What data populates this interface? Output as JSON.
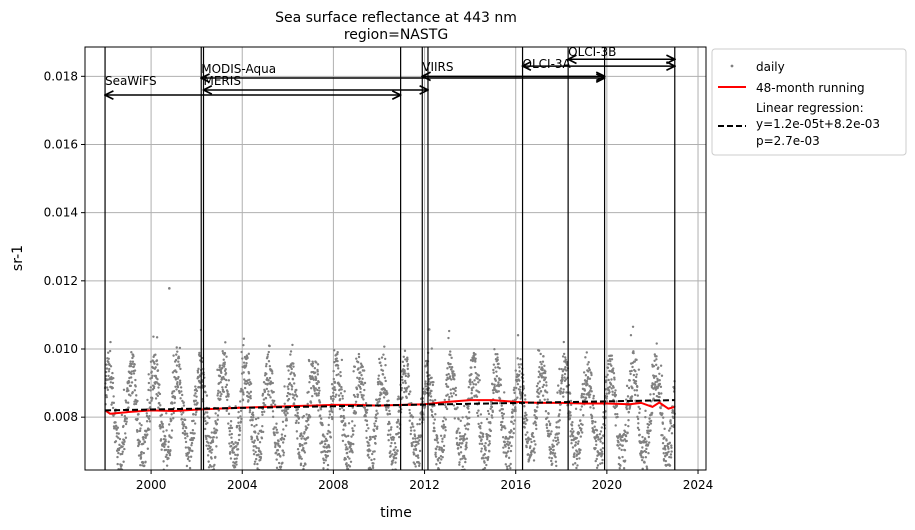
{
  "chart_data": {
    "type": "scatter",
    "title": "Sea surface reflectance at 443 nm",
    "subtitle": "region=NASTG",
    "xlabel": "time",
    "ylabel": "sr-1",
    "xlim": [
      1997.1,
      2024.35
    ],
    "ylim": [
      0.00645,
      0.01886
    ],
    "xticks": [
      2000,
      2004,
      2008,
      2012,
      2016,
      2020,
      2024
    ],
    "yticks": [
      0.008,
      0.01,
      0.012,
      0.014,
      0.016,
      0.018
    ],
    "ytick_labels": [
      "0.008",
      "0.010",
      "0.012",
      "0.014",
      "0.016",
      "0.018"
    ],
    "grid": true,
    "legend_position": "outside-right-top",
    "legend": {
      "daily": "daily",
      "running": "48-month running",
      "regression_title": "Linear regression:",
      "regression_eq": "y=1.2e-05t+8.2e-03",
      "regression_p": "p=2.7e-03"
    },
    "colors": {
      "daily": "#808080",
      "running": "#ff0000",
      "regression": "#000000"
    },
    "daily_series": {
      "name": "daily",
      "start": 1997.98,
      "end": 2022.98,
      "low_value_approx": 0.0068,
      "high_value_approx": 0.0093,
      "outlier": [
        2000.8,
        0.01178
      ]
    },
    "running_mean": {
      "name": "48-month running",
      "x": [
        1997.98,
        1998.2,
        1999,
        2000,
        2001,
        2002,
        2003,
        2004,
        2005,
        2006,
        2007,
        2008,
        2009,
        2010,
        2011,
        2012,
        2013,
        2014,
        2015,
        2016,
        2017,
        2018,
        2019,
        2020,
        2021,
        2021.5,
        2022,
        2022.3,
        2022.7,
        2022.98
      ],
      "y": [
        0.0082,
        0.0081,
        0.00815,
        0.0082,
        0.00818,
        0.00822,
        0.00825,
        0.00828,
        0.0083,
        0.00832,
        0.00834,
        0.00836,
        0.00836,
        0.00834,
        0.00836,
        0.00838,
        0.00845,
        0.0085,
        0.0085,
        0.00845,
        0.00842,
        0.00842,
        0.0084,
        0.0084,
        0.00838,
        0.00842,
        0.0083,
        0.00843,
        0.00825,
        0.0083
      ]
    },
    "regression": {
      "name": "Linear regression",
      "x": [
        1997.98,
        2022.98
      ],
      "y": [
        0.0082,
        0.0085
      ]
    },
    "missions": [
      {
        "name": "SeaWiFS",
        "start": 1997.98,
        "end": 2010.95,
        "label_y": 0.01775,
        "arrow_y": 0.01745
      },
      {
        "name": "MERIS",
        "start": 2002.3,
        "end": 2012.15,
        "label_y": 0.01775,
        "arrow_y": 0.0176
      },
      {
        "name": "MODIS-Aqua",
        "start": 2002.2,
        "end": 2019.9,
        "label_y": 0.0181,
        "arrow_y": 0.01795
      },
      {
        "name": "VIIRS",
        "start": 2011.9,
        "end": 2019.9,
        "label_y": 0.01815,
        "arrow_y": 0.018
      },
      {
        "name": "OLCI-3A",
        "start": 2016.3,
        "end": 2022.98,
        "label_y": 0.01825,
        "arrow_y": 0.0183
      },
      {
        "name": "OLCI-3B",
        "start": 2018.3,
        "end": 2022.98,
        "label_y": 0.0186,
        "arrow_y": 0.0185
      }
    ],
    "mission_lines": [
      1997.98,
      2002.2,
      2002.3,
      2010.95,
      2011.9,
      2012.15,
      2016.3,
      2018.3,
      2019.9,
      2022.98
    ]
  }
}
